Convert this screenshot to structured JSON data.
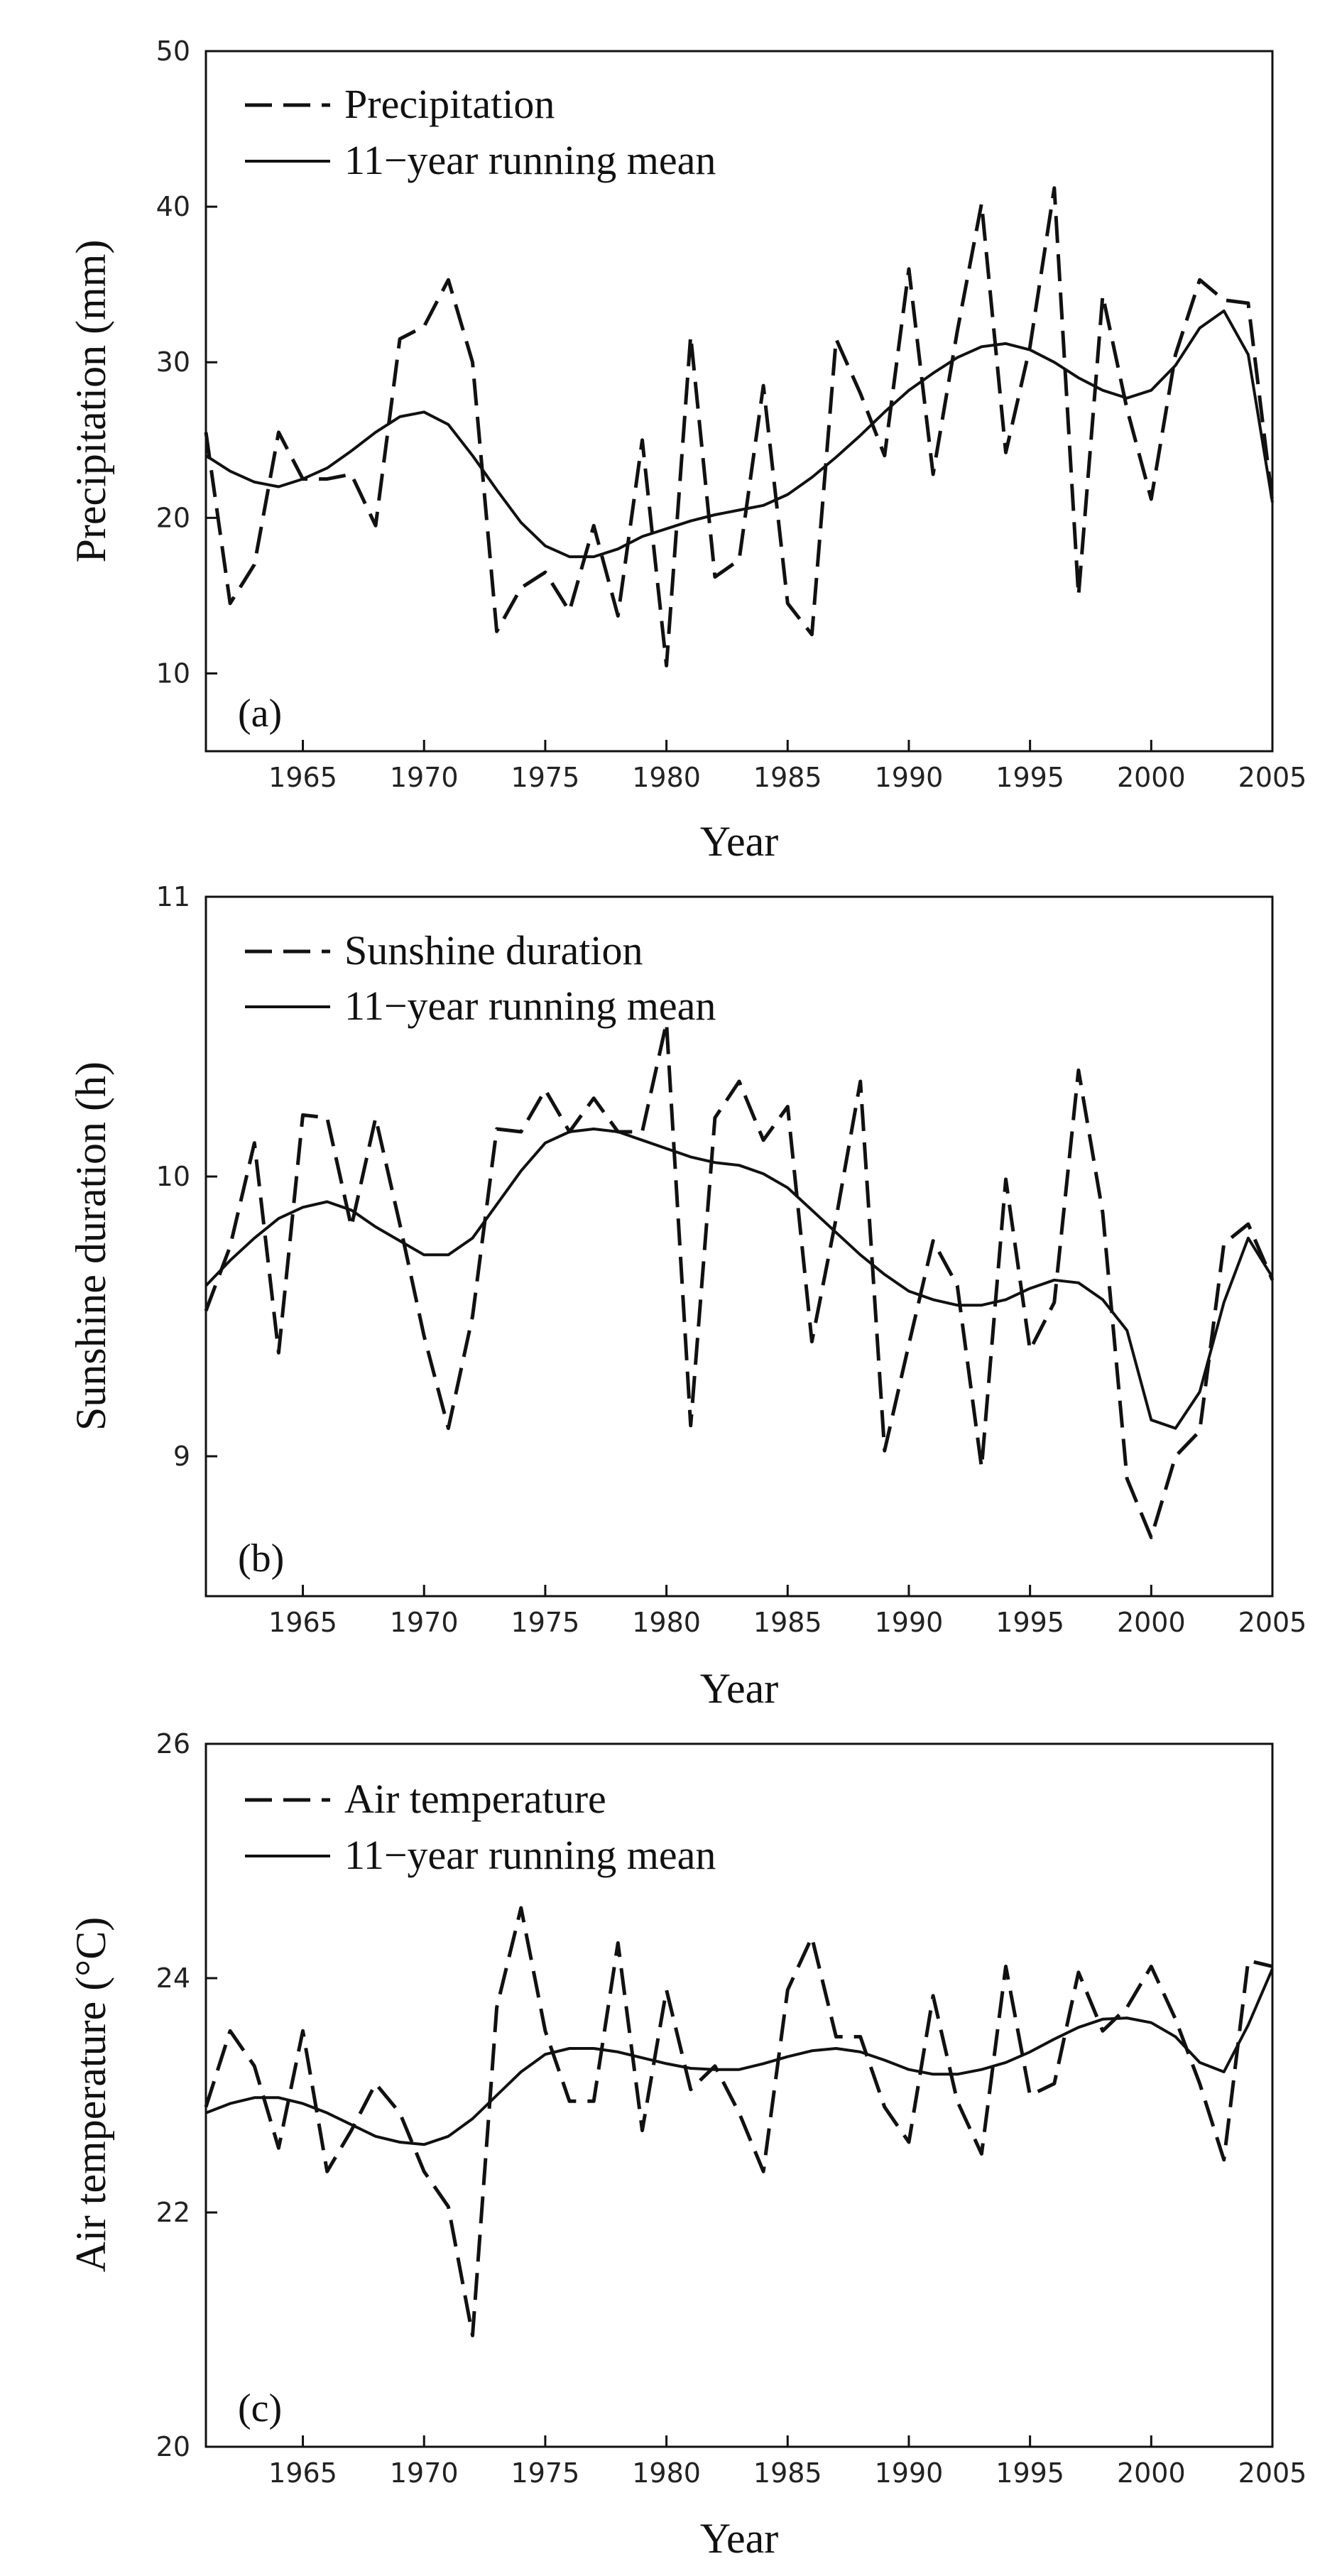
{
  "chart_data": [
    {
      "type": "line",
      "panel_label": "(a)",
      "xlabel": "Year",
      "ylabel": "Precipitation (mm)",
      "xlim": [
        1961,
        2005
      ],
      "ylim": [
        5,
        50
      ],
      "yticks": [
        10,
        20,
        30,
        40,
        50
      ],
      "xticks": [
        1965,
        1970,
        1975,
        1980,
        1985,
        1990,
        1995,
        2000,
        2005
      ],
      "legend_position": "top-left",
      "grid": false,
      "x": [
        1961,
        1962,
        1963,
        1964,
        1965,
        1966,
        1967,
        1968,
        1969,
        1970,
        1971,
        1972,
        1973,
        1974,
        1975,
        1976,
        1977,
        1978,
        1979,
        1980,
        1981,
        1982,
        1983,
        1984,
        1985,
        1986,
        1987,
        1988,
        1989,
        1990,
        1991,
        1992,
        1993,
        1994,
        1995,
        1996,
        1997,
        1998,
        1999,
        2000,
        2001,
        2002,
        2003,
        2004,
        2005
      ],
      "series": [
        {
          "name": "Precipitation",
          "style": "dashed",
          "values": [
            25.5,
            14.5,
            17,
            25.5,
            22.5,
            22.5,
            22.8,
            19.5,
            31.5,
            32.3,
            35.3,
            30,
            12.7,
            15.5,
            16.5,
            14,
            19.5,
            13.7,
            25,
            10.5,
            31.7,
            16.2,
            17.3,
            28.5,
            14.5,
            12.5,
            31.5,
            28,
            24,
            36,
            22.8,
            32,
            40.2,
            24.2,
            31,
            41.2,
            15,
            34.3,
            27,
            21.2,
            30.5,
            35.3,
            34,
            33.8,
            21
          ]
        },
        {
          "name": "11−year running mean",
          "style": "solid",
          "values": [
            24,
            23,
            22.3,
            22,
            22.5,
            23.2,
            24.3,
            25.5,
            26.5,
            26.8,
            26,
            24,
            21.8,
            19.7,
            18.2,
            17.5,
            17.5,
            18,
            18.8,
            19.3,
            19.8,
            20.2,
            20.5,
            20.8,
            21.5,
            22.6,
            23.9,
            25.3,
            26.8,
            28.2,
            29.3,
            30.3,
            31,
            31.2,
            30.8,
            30,
            29,
            28.2,
            27.7,
            28.2,
            29.8,
            32.2,
            33.3,
            30.5,
            21
          ]
        }
      ]
    },
    {
      "type": "line",
      "panel_label": "(b)",
      "xlabel": "Year",
      "ylabel": "Sunshine duration (h)",
      "xlim": [
        1961,
        2005
      ],
      "ylim": [
        8.5,
        11
      ],
      "yticks": [
        9,
        10,
        11
      ],
      "xticks": [
        1965,
        1970,
        1975,
        1980,
        1985,
        1990,
        1995,
        2000,
        2005
      ],
      "legend_position": "top-left",
      "grid": false,
      "x": [
        1961,
        1962,
        1963,
        1964,
        1965,
        1966,
        1967,
        1968,
        1969,
        1970,
        1971,
        1972,
        1973,
        1974,
        1975,
        1976,
        1977,
        1978,
        1979,
        1980,
        1981,
        1982,
        1983,
        1984,
        1985,
        1986,
        1987,
        1988,
        1989,
        1990,
        1991,
        1992,
        1993,
        1994,
        1995,
        1996,
        1997,
        1998,
        1999,
        2000,
        2001,
        2002,
        2003,
        2004,
        2005
      ],
      "series": [
        {
          "name": "Sunshine duration",
          "style": "dashed",
          "values": [
            9.52,
            9.75,
            10.12,
            9.37,
            10.22,
            10.21,
            9.82,
            10.21,
            9.83,
            9.43,
            9.1,
            9.5,
            10.17,
            10.16,
            10.31,
            10.16,
            10.28,
            10.16,
            10.16,
            10.55,
            9.11,
            10.21,
            10.34,
            10.13,
            10.25,
            9.41,
            9.85,
            10.34,
            9.02,
            9.4,
            9.77,
            9.61,
            8.96,
            9.99,
            9.38,
            9.55,
            10.38,
            9.87,
            8.92,
            8.71,
            9,
            9.09,
            9.76,
            9.83,
            9.63
          ]
        },
        {
          "name": "11−year running mean",
          "style": "solid",
          "values": [
            9.61,
            9.7,
            9.78,
            9.85,
            9.89,
            9.91,
            9.88,
            9.82,
            9.77,
            9.72,
            9.72,
            9.78,
            9.9,
            10.02,
            10.12,
            10.16,
            10.17,
            10.16,
            10.13,
            10.1,
            10.07,
            10.05,
            10.04,
            10.01,
            9.96,
            9.88,
            9.8,
            9.72,
            9.65,
            9.59,
            9.56,
            9.54,
            9.54,
            9.56,
            9.6,
            9.63,
            9.62,
            9.56,
            9.45,
            9.13,
            9.1,
            9.23,
            9.55,
            9.78,
            9.64
          ]
        }
      ]
    },
    {
      "type": "line",
      "panel_label": "(c)",
      "xlabel": "Year",
      "ylabel": "Air temperature (°C)",
      "xlim": [
        1961,
        2005
      ],
      "ylim": [
        20,
        26
      ],
      "yticks": [
        20,
        22,
        24,
        26
      ],
      "xticks": [
        1965,
        1970,
        1975,
        1980,
        1985,
        1990,
        1995,
        2000,
        2005
      ],
      "legend_position": "top-left",
      "grid": false,
      "x": [
        1961,
        1962,
        1963,
        1964,
        1965,
        1966,
        1967,
        1968,
        1969,
        1970,
        1971,
        1972,
        1973,
        1974,
        1975,
        1976,
        1977,
        1978,
        1979,
        1980,
        1981,
        1982,
        1983,
        1984,
        1985,
        1986,
        1987,
        1988,
        1989,
        1990,
        1991,
        1992,
        1993,
        1994,
        1995,
        1996,
        1997,
        1998,
        1999,
        2000,
        2001,
        2002,
        2003,
        2004,
        2005
      ],
      "series": [
        {
          "name": "Air temperature",
          "style": "dashed",
          "values": [
            22.9,
            23.55,
            23.25,
            22.55,
            23.55,
            22.35,
            22.7,
            23.1,
            22.85,
            22.35,
            22.05,
            20.95,
            23.75,
            24.6,
            23.55,
            22.95,
            22.95,
            24.3,
            22.7,
            23.9,
            23.05,
            23.25,
            22.85,
            22.35,
            23.9,
            24.35,
            23.5,
            23.5,
            22.9,
            22.6,
            23.85,
            22.95,
            22.5,
            24.1,
            23,
            23.1,
            24.05,
            23.55,
            23.75,
            24.1,
            23.65,
            23.1,
            22.45,
            24.15,
            24.1
          ]
        },
        {
          "name": "11−year running mean",
          "style": "solid",
          "values": [
            22.85,
            22.93,
            22.98,
            22.98,
            22.93,
            22.85,
            22.75,
            22.65,
            22.6,
            22.58,
            22.65,
            22.8,
            23,
            23.2,
            23.35,
            23.4,
            23.4,
            23.37,
            23.32,
            23.27,
            23.23,
            23.22,
            23.22,
            23.27,
            23.33,
            23.38,
            23.4,
            23.37,
            23.3,
            23.22,
            23.18,
            23.18,
            23.22,
            23.28,
            23.37,
            23.48,
            23.58,
            23.65,
            23.66,
            23.62,
            23.5,
            23.28,
            23.2,
            23.6,
            24.08
          ]
        }
      ]
    }
  ]
}
